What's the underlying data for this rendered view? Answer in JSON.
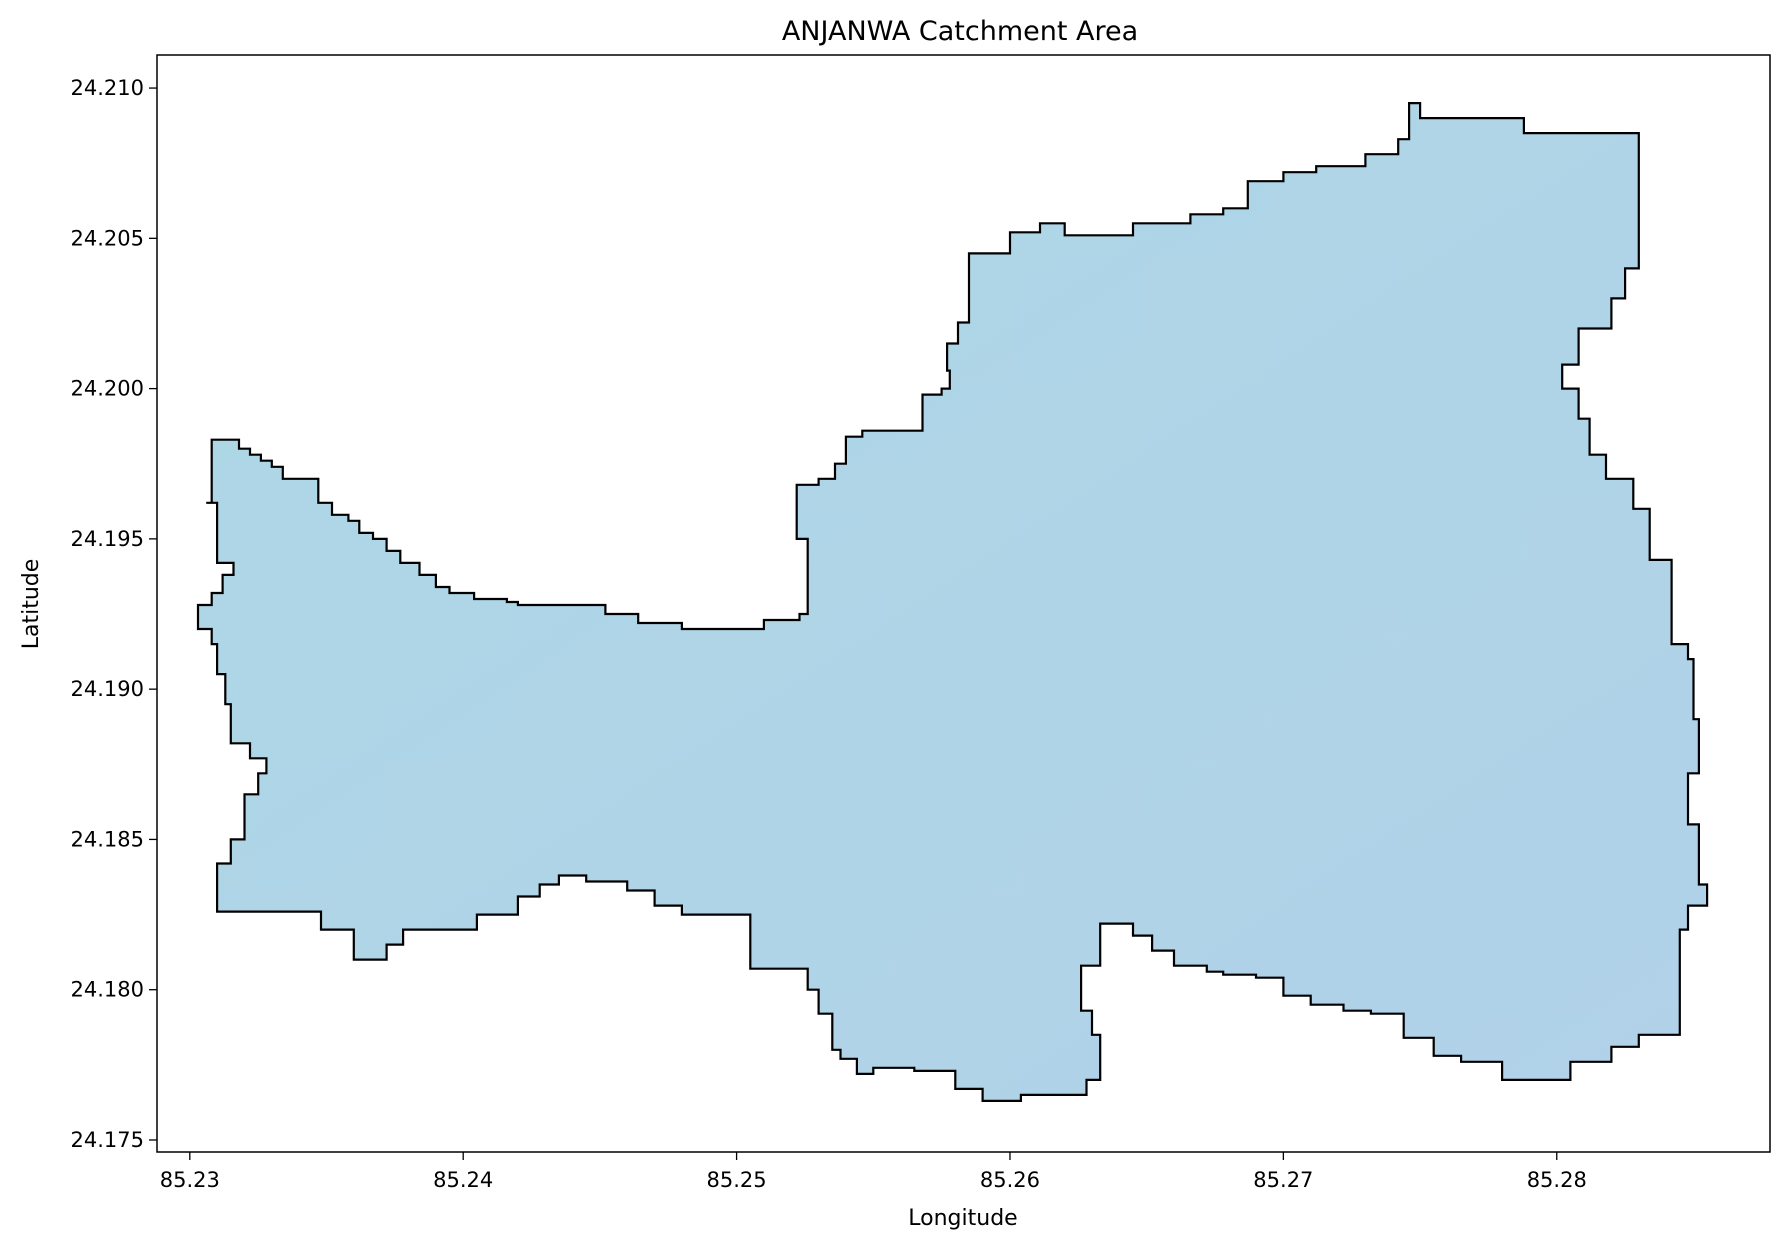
{
  "chart_data": {
    "type": "choropleth-polygon",
    "title": "ANJANWA Catchment Area",
    "xlabel": "Longitude",
    "ylabel": "Latitude",
    "xlim": [
      85.2288,
      85.2878
    ],
    "ylim": [
      24.1746,
      24.2111
    ],
    "xticks": [
      85.23,
      85.24,
      85.25,
      85.26,
      85.27,
      85.28
    ],
    "xtick_labels": [
      "85.23",
      "85.24",
      "85.25",
      "85.26",
      "85.27",
      "85.28"
    ],
    "yticks": [
      24.175,
      24.18,
      24.185,
      24.19,
      24.195,
      24.2,
      24.205,
      24.21
    ],
    "ytick_labels": [
      "24.175",
      "24.180",
      "24.185",
      "24.190",
      "24.195",
      "24.200",
      "24.205",
      "24.210"
    ],
    "grid": false,
    "fill_color": "#add8e6",
    "fill_color_alt": "#b1d1e8",
    "edge_color": "#000000",
    "polygon": [
      [
        85.2308,
        24.1983
      ],
      [
        85.2315,
        24.1983
      ],
      [
        85.2318,
        24.198
      ],
      [
        85.2322,
        24.1978
      ],
      [
        85.2326,
        24.1976
      ],
      [
        85.233,
        24.1974
      ],
      [
        85.2334,
        24.197
      ],
      [
        85.2347,
        24.1969
      ],
      [
        85.2347,
        24.1962
      ],
      [
        85.2352,
        24.1958
      ],
      [
        85.2358,
        24.1956
      ],
      [
        85.2362,
        24.1952
      ],
      [
        85.2367,
        24.195
      ],
      [
        85.2372,
        24.1946
      ],
      [
        85.2377,
        24.1942
      ],
      [
        85.2384,
        24.1938
      ],
      [
        85.239,
        24.1934
      ],
      [
        85.2395,
        24.1932
      ],
      [
        85.2404,
        24.193
      ],
      [
        85.241,
        24.193
      ],
      [
        85.2416,
        24.1929
      ],
      [
        85.242,
        24.1928
      ],
      [
        85.2427,
        24.1928
      ],
      [
        85.244,
        24.1928
      ],
      [
        85.2452,
        24.1925
      ],
      [
        85.2464,
        24.1922
      ],
      [
        85.248,
        24.192
      ],
      [
        85.25,
        24.192
      ],
      [
        85.251,
        24.1923
      ],
      [
        85.2523,
        24.1925
      ],
      [
        85.2526,
        24.1929
      ],
      [
        85.2526,
        24.195
      ],
      [
        85.2522,
        24.1956
      ],
      [
        85.2522,
        24.1968
      ],
      [
        85.253,
        24.197
      ],
      [
        85.2536,
        24.1975
      ],
      [
        85.254,
        24.1984
      ],
      [
        85.2546,
        24.1986
      ],
      [
        85.256,
        24.1986
      ],
      [
        85.2568,
        24.1998
      ],
      [
        85.2575,
        24.2
      ],
      [
        85.2578,
        24.2006
      ],
      [
        85.2577,
        24.2015
      ],
      [
        85.2581,
        24.2022
      ],
      [
        85.2585,
        24.204
      ],
      [
        85.2585,
        24.2045
      ],
      [
        85.2597,
        24.2045
      ],
      [
        85.26,
        24.2052
      ],
      [
        85.2611,
        24.2055
      ],
      [
        85.262,
        24.2051
      ],
      [
        85.2637,
        24.2051
      ],
      [
        85.2645,
        24.2055
      ],
      [
        85.2657,
        24.2055
      ],
      [
        85.2666,
        24.2058
      ],
      [
        85.2678,
        24.206
      ],
      [
        85.2687,
        24.2069
      ],
      [
        85.27,
        24.2072
      ],
      [
        85.2712,
        24.2074
      ],
      [
        85.273,
        24.2078
      ],
      [
        85.2742,
        24.2083
      ],
      [
        85.2746,
        24.2095
      ],
      [
        85.275,
        24.209
      ],
      [
        85.2788,
        24.2085
      ],
      [
        85.283,
        24.2085
      ],
      [
        85.283,
        24.204
      ],
      [
        85.2825,
        24.203
      ],
      [
        85.282,
        24.202
      ],
      [
        85.2808,
        24.2008
      ],
      [
        85.2802,
        24.2
      ],
      [
        85.2808,
        24.199
      ],
      [
        85.2812,
        24.1978
      ],
      [
        85.2818,
        24.197
      ],
      [
        85.2828,
        24.196
      ],
      [
        85.2834,
        24.1943
      ],
      [
        85.2842,
        24.1943
      ],
      [
        85.2842,
        24.1915
      ],
      [
        85.2848,
        24.191
      ],
      [
        85.285,
        24.189
      ],
      [
        85.2852,
        24.1872
      ],
      [
        85.2848,
        24.1868
      ],
      [
        85.2848,
        24.1855
      ],
      [
        85.2852,
        24.1845
      ],
      [
        85.2852,
        24.1835
      ],
      [
        85.2855,
        24.1828
      ],
      [
        85.2848,
        24.182
      ],
      [
        85.2845,
        24.181
      ],
      [
        85.2845,
        24.1785
      ],
      [
        85.2835,
        24.1785
      ],
      [
        85.283,
        24.1781
      ],
      [
        85.282,
        24.1776
      ],
      [
        85.2805,
        24.177
      ],
      [
        85.2795,
        24.177
      ],
      [
        85.278,
        24.1776
      ],
      [
        85.2765,
        24.1778
      ],
      [
        85.2755,
        24.1784
      ],
      [
        85.2744,
        24.1792
      ],
      [
        85.2732,
        24.1793
      ],
      [
        85.2722,
        24.1795
      ],
      [
        85.271,
        24.1798
      ],
      [
        85.27,
        24.1804
      ],
      [
        85.269,
        24.1805
      ],
      [
        85.2678,
        24.1806
      ],
      [
        85.2672,
        24.1808
      ],
      [
        85.266,
        24.1813
      ],
      [
        85.2652,
        24.1818
      ],
      [
        85.2645,
        24.1822
      ],
      [
        85.2633,
        24.1822
      ],
      [
        85.2633,
        24.1808
      ],
      [
        85.2626,
        24.1802
      ],
      [
        85.2626,
        24.1793
      ],
      [
        85.263,
        24.1785
      ],
      [
        85.2633,
        24.1777
      ],
      [
        85.2633,
        24.177
      ],
      [
        85.2628,
        24.1765
      ],
      [
        85.261,
        24.1765
      ],
      [
        85.2604,
        24.1763
      ],
      [
        85.259,
        24.1767
      ],
      [
        85.258,
        24.1773
      ],
      [
        85.2565,
        24.1774
      ],
      [
        85.255,
        24.1772
      ],
      [
        85.2544,
        24.1777
      ],
      [
        85.2538,
        24.178
      ],
      [
        85.2535,
        24.1792
      ],
      [
        85.253,
        24.18
      ],
      [
        85.2526,
        24.1807
      ],
      [
        85.2508,
        24.1807
      ],
      [
        85.2505,
        24.1825
      ],
      [
        85.248,
        24.1828
      ],
      [
        85.247,
        24.1833
      ],
      [
        85.246,
        24.1836
      ],
      [
        85.2445,
        24.1838
      ],
      [
        85.2435,
        24.1835
      ],
      [
        85.2428,
        24.1831
      ],
      [
        85.242,
        24.1825
      ],
      [
        85.2405,
        24.182
      ],
      [
        85.2385,
        24.182
      ],
      [
        85.2378,
        24.1815
      ],
      [
        85.2372,
        24.181
      ],
      [
        85.236,
        24.182
      ],
      [
        85.2348,
        24.1826
      ],
      [
        85.233,
        24.1826
      ],
      [
        85.231,
        24.183
      ],
      [
        85.231,
        24.1842
      ],
      [
        85.2315,
        24.185
      ],
      [
        85.232,
        24.1865
      ],
      [
        85.2325,
        24.1872
      ],
      [
        85.2328,
        24.1877
      ],
      [
        85.2322,
        24.1882
      ],
      [
        85.2315,
        24.1882
      ],
      [
        85.2315,
        24.1895
      ],
      [
        85.2313,
        24.1905
      ],
      [
        85.231,
        24.1915
      ],
      [
        85.2308,
        24.192
      ],
      [
        85.2303,
        24.192
      ],
      [
        85.2303,
        24.1928
      ],
      [
        85.2308,
        24.1932
      ],
      [
        85.2312,
        24.1938
      ],
      [
        85.2316,
        24.1942
      ],
      [
        85.231,
        24.195
      ],
      [
        85.231,
        24.1962
      ],
      [
        85.2306,
        24.1962
      ],
      [
        85.2308,
        24.1966
      ],
      [
        85.2308,
        24.1983
      ]
    ]
  }
}
